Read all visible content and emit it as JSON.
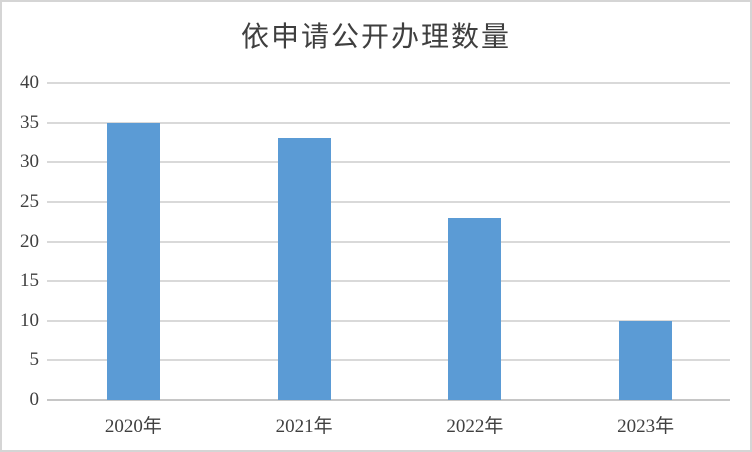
{
  "window": {
    "background": "#ffffff",
    "border_color": "#d5d5d5"
  },
  "chart_data": {
    "type": "bar",
    "title": "依申请公开办理数量",
    "categories": [
      "2020年",
      "2021年",
      "2022年",
      "2023年"
    ],
    "values": [
      35,
      33,
      23,
      10
    ],
    "xlabel": "",
    "ylabel": "",
    "ylim": [
      0,
      40
    ],
    "ytick_step": 5,
    "ytick_labels": [
      "0",
      "5",
      "10",
      "15",
      "20",
      "25",
      "30",
      "35",
      "40"
    ],
    "grid": true,
    "legend": false,
    "bar_color": "#5b9bd5",
    "gridline_color": "#d9d9d9",
    "axis_line_color": "#c6c6c6",
    "tick_text_color": "#404040",
    "title_color": "#3f3f3f"
  }
}
